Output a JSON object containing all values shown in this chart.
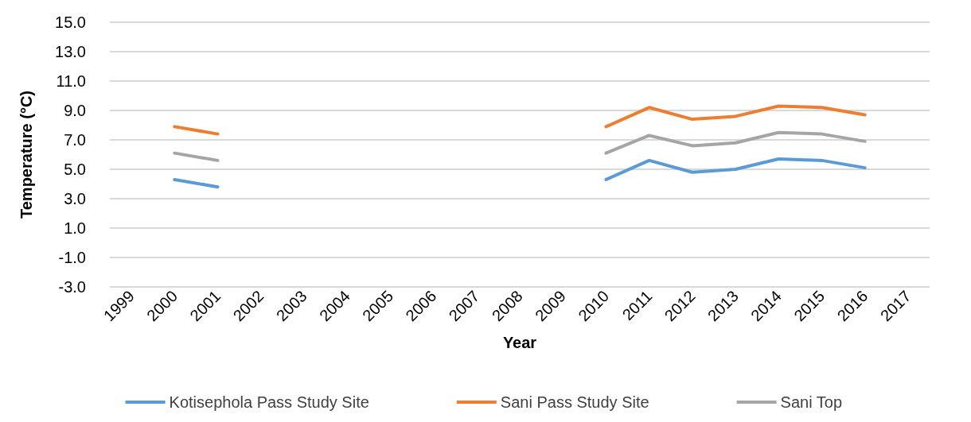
{
  "chart_data": {
    "type": "line",
    "xlabel": "Year",
    "ylabel": "Temperature (°C)",
    "categories": [
      "1999",
      "2000",
      "2001",
      "2002",
      "2003",
      "2004",
      "2005",
      "2006",
      "2007",
      "2008",
      "2009",
      "2010",
      "2011",
      "2012",
      "2013",
      "2014",
      "2015",
      "2016",
      "2017"
    ],
    "series": [
      {
        "name": "Kotisephola Pass Study Site",
        "color": "#5b9bd5",
        "values": [
          null,
          4.3,
          3.8,
          null,
          null,
          null,
          null,
          null,
          null,
          null,
          null,
          4.3,
          5.6,
          4.8,
          5.0,
          5.7,
          5.6,
          5.1,
          null
        ]
      },
      {
        "name": "Sani Pass Study Site",
        "color": "#ed7d31",
        "values": [
          null,
          7.9,
          7.4,
          null,
          null,
          null,
          null,
          null,
          null,
          null,
          null,
          7.9,
          9.2,
          8.4,
          8.6,
          9.3,
          9.2,
          8.7,
          null
        ]
      },
      {
        "name": "Sani Top",
        "color": "#a5a5a5",
        "values": [
          null,
          6.1,
          5.6,
          null,
          null,
          null,
          null,
          null,
          null,
          null,
          null,
          6.1,
          7.3,
          6.6,
          6.8,
          7.5,
          7.4,
          6.9,
          null
        ]
      }
    ],
    "ylim": [
      -3,
      15
    ],
    "yticks": [
      {
        "value": -3,
        "label": "-3.0"
      },
      {
        "value": -1,
        "label": "-1.0"
      },
      {
        "value": 1,
        "label": "1.0"
      },
      {
        "value": 3,
        "label": "3.0"
      },
      {
        "value": 5,
        "label": "5.0"
      },
      {
        "value": 7,
        "label": "7.0"
      },
      {
        "value": 9,
        "label": "9.0"
      },
      {
        "value": 11,
        "label": "11.0"
      },
      {
        "value": 13,
        "label": "13.0"
      },
      {
        "value": 15,
        "label": "15.0"
      }
    ],
    "grid": "y",
    "legend": "bottom",
    "marker": "none",
    "line_style": "solid"
  }
}
